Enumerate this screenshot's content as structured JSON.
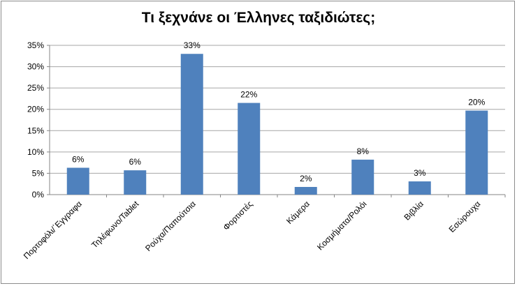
{
  "chart_data": {
    "type": "bar",
    "title": "Τι ξεχνάνε οι Έλληνες ταξιδιώτες;",
    "categories": [
      "Πορτοφόλι/΄Εγγραφα",
      "Τηλέφωνο/Tablet",
      "Ρούχα/Παπούτσια",
      "Φορτιστές",
      "Κάμερα",
      "Κοσμήματα/Ρολόι",
      "Βιβλία",
      "Εσώρουχα"
    ],
    "values": [
      6.3,
      5.7,
      33.0,
      21.5,
      1.8,
      8.2,
      3.1,
      19.7
    ],
    "data_labels": [
      "6%",
      "6%",
      "33%",
      "22%",
      "2%",
      "8%",
      "3%",
      "20%"
    ],
    "y_ticks": [
      "0%",
      "5%",
      "10%",
      "15%",
      "20%",
      "25%",
      "30%",
      "35%"
    ],
    "ylim": [
      0,
      35
    ],
    "grid": true,
    "bar_color": "#4f81bd"
  }
}
